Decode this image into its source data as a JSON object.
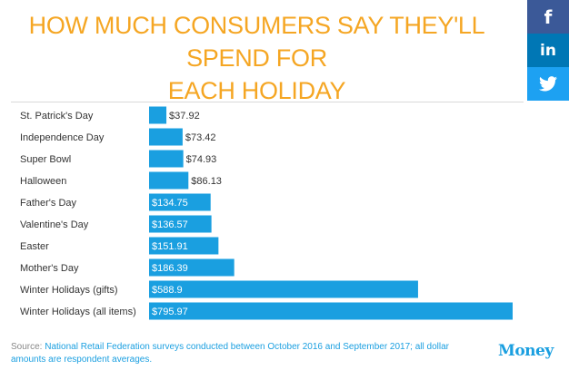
{
  "title_line1": "HOW MUCH CONSUMERS SAY THEY'LL SPEND FOR",
  "title_line2": "EACH HOLIDAY",
  "social": {
    "facebook": "f",
    "linkedin": "in"
  },
  "colors": {
    "title": "#f5a623",
    "bar": "#1a9fe0",
    "facebook": "#3b5998",
    "linkedin": "#0077b5",
    "twitter": "#1da1f2"
  },
  "icons": {
    "facebook": "facebook-icon",
    "linkedin": "linkedin-icon",
    "twitter": "twitter-icon"
  },
  "chart_data": {
    "type": "bar",
    "orientation": "horizontal",
    "categories": [
      "St. Patrick's Day",
      "Independence Day",
      "Super Bowl",
      "Halloween",
      "Father's Day",
      "Valentine's Day",
      "Easter",
      "Mother's Day",
      "Winter Holidays (gifts)",
      "Winter Holidays (all items)"
    ],
    "values": [
      37.92,
      73.42,
      74.93,
      86.13,
      134.75,
      136.57,
      151.91,
      186.39,
      588.9,
      795.97
    ],
    "data_labels": [
      "$37.92",
      "$73.42",
      "$74.93",
      "$86.13",
      "$134.75",
      "$136.57",
      "$151.91",
      "$186.39",
      "$588.9",
      "$795.97"
    ],
    "grid": false,
    "legend": "none"
  },
  "source": {
    "label": "Source:",
    "text": "National Retail Federation surveys conducted between October 2016 and September 2017; all dollar amounts are respondent averages."
  },
  "brand": "Money"
}
